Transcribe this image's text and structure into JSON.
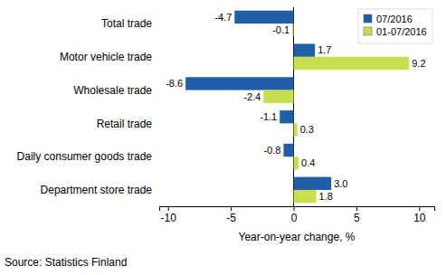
{
  "chart_data": {
    "type": "bar",
    "orientation": "horizontal",
    "categories": [
      "Total trade",
      "Motor vehicle trade",
      "Wholesale trade",
      "Retail trade",
      "Daily consumer goods trade",
      "Department store trade"
    ],
    "series": [
      {
        "name": "07/2016",
        "color": "#1f5fa8",
        "values": [
          -4.7,
          1.7,
          -8.6,
          -1.1,
          -0.8,
          3.0
        ],
        "value_labels": [
          "-4.7",
          "1.7",
          "-8.6",
          "-1.1",
          "-0.8",
          "3.0"
        ]
      },
      {
        "name": "01-07/2016",
        "color": "#c9df4f",
        "values": [
          -0.1,
          9.2,
          -2.4,
          0.3,
          0.4,
          1.8
        ]
      }
    ],
    "x_label": "Year-on-year change, %",
    "xlim": [
      -10.7,
      11.2
    ],
    "xticks": [
      -10,
      -5,
      0,
      5,
      10
    ],
    "grid": false,
    "legend": "top-right",
    "data_labels": true,
    "annotations": [
      "Source: Statistics Finland"
    ]
  }
}
